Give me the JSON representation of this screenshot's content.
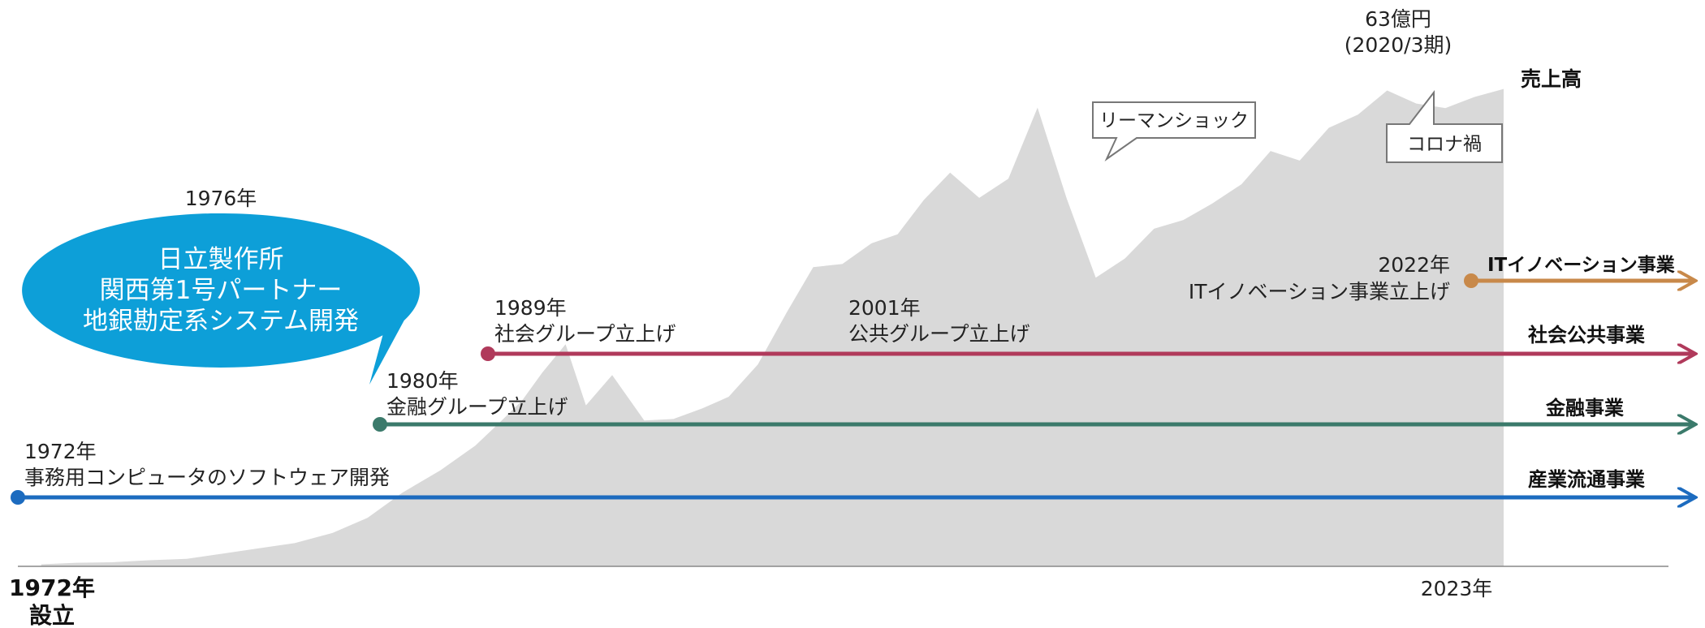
{
  "chart_data": {
    "type": "area",
    "title": "",
    "series": [
      {
        "name": "売上高",
        "color": "#d9d9d9",
        "points": [
          [
            1972.8,
            0.4
          ],
          [
            1974.0,
            0.7
          ],
          [
            1975.2,
            0.8
          ],
          [
            1976.5,
            1.2
          ],
          [
            1977.8,
            1.5
          ],
          [
            1979.0,
            2.5
          ],
          [
            1980.3,
            3.6
          ],
          [
            1981.5,
            4.6
          ],
          [
            1982.8,
            6.6
          ],
          [
            1984.0,
            9.6
          ],
          [
            1985.2,
            14.6
          ],
          [
            1986.5,
            19.0
          ],
          [
            1987.7,
            23.9
          ],
          [
            1988.5,
            28.3
          ],
          [
            1989.3,
            32.8
          ],
          [
            1990.0,
            38.4
          ],
          [
            1990.8,
            44.0
          ],
          [
            1991.5,
            31.9
          ],
          [
            1992.4,
            37.9
          ],
          [
            1993.5,
            28.9
          ],
          [
            1994.5,
            29.2
          ],
          [
            1995.5,
            31.3
          ],
          [
            1996.4,
            33.6
          ],
          [
            1997.4,
            40.0
          ],
          [
            1998.4,
            50.4
          ],
          [
            1999.3,
            59.3
          ],
          [
            2000.3,
            59.9
          ],
          [
            2001.3,
            64.0
          ],
          [
            2002.2,
            65.8
          ],
          [
            2003.1,
            72.6
          ],
          [
            2004.0,
            78.0
          ],
          [
            2005.0,
            73.0
          ],
          [
            2006.0,
            76.8
          ],
          [
            2007.0,
            90.9
          ],
          [
            2008.0,
            72.9
          ],
          [
            2009.0,
            57.2
          ],
          [
            2010.0,
            61.0
          ],
          [
            2011.0,
            66.9
          ],
          [
            2012.0,
            68.6
          ],
          [
            2013.0,
            71.9
          ],
          [
            2014.0,
            75.7
          ],
          [
            2015.0,
            82.3
          ],
          [
            2016.0,
            80.4
          ],
          [
            2017.0,
            86.9
          ],
          [
            2018.0,
            89.5
          ],
          [
            2019.0,
            94.3
          ],
          [
            2020.0,
            91.7
          ],
          [
            2021.0,
            90.8
          ],
          [
            2022.0,
            93.0
          ],
          [
            2023.0,
            94.6
          ]
        ]
      }
    ],
    "peak_label": [
      "63億円",
      "(2020/3期)"
    ],
    "series_label": "売上高",
    "x_start_label": [
      "1972年",
      "設立"
    ],
    "x_end_label": "2023年",
    "callouts": [
      {
        "text": "リーマンショック",
        "target_year": 2008.0
      },
      {
        "text": "コロナ禍",
        "target_year": 2020.2
      }
    ],
    "bubble": {
      "year_label": "1976年",
      "lines": [
        "日立製作所",
        "関西第1号パートナー",
        "地銀勘定系システム開発"
      ],
      "color": "#0d9fd8"
    },
    "business_lines": [
      {
        "name": "産業流通事業",
        "start_year": 1972,
        "color": "#1c6bbf",
        "year_label": "1972年",
        "desc": "事務用コンピュータのソフトウェア開発"
      },
      {
        "name": "金融事業",
        "start_year": 1980,
        "color": "#3b7a6b",
        "year_label": "1980年",
        "desc": "金融グループ立上げ"
      },
      {
        "name": "社会公共事業",
        "start_year": 1989,
        "color": "#b03a5b",
        "year_label": "1989年",
        "desc": "社会グループ立上げ",
        "extra_year_label": "2001年",
        "extra_desc": "公共グループ立上げ",
        "extra_year": 2001
      },
      {
        "name": "ITイノベーション事業",
        "start_year": 2022,
        "color": "#c8894a",
        "year_label": "2022年",
        "desc": "ITイノベーション事業立上げ"
      }
    ]
  }
}
